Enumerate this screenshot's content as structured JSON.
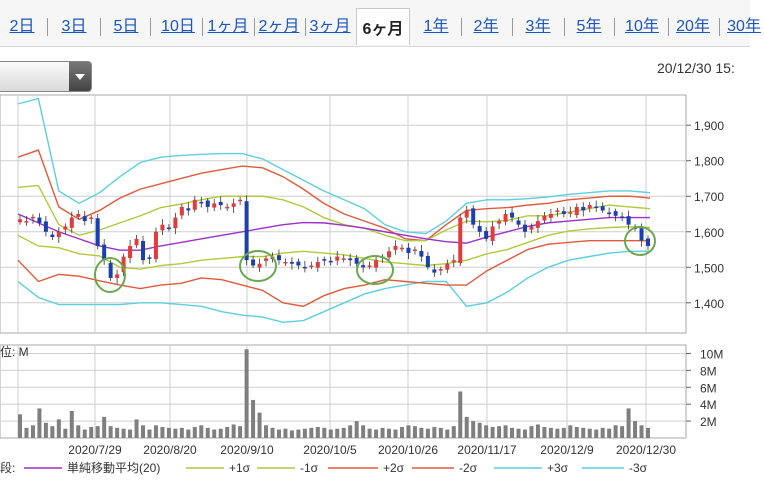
{
  "tabs": [
    {
      "label": "2日",
      "active": false
    },
    {
      "label": "3日",
      "active": false
    },
    {
      "label": "5日",
      "active": false
    },
    {
      "label": "10日",
      "active": false
    },
    {
      "label": "1ヶ月",
      "active": false
    },
    {
      "label": "2ヶ月",
      "active": false
    },
    {
      "label": "3ヶ月",
      "active": false
    },
    {
      "label": "6ヶ月",
      "active": true
    },
    {
      "label": "1年",
      "active": false
    },
    {
      "label": "2年",
      "active": false
    },
    {
      "label": "3年",
      "active": false
    },
    {
      "label": "5年",
      "active": false
    },
    {
      "label": "10年",
      "active": false
    },
    {
      "label": "20年",
      "active": false
    },
    {
      "label": "30年",
      "active": false
    }
  ],
  "header": {
    "datetime": "20/12/30 15:"
  },
  "volume_unit_label": "位: M",
  "legend_prefix": "段:",
  "colors": {
    "tab_link": "#1a55c0",
    "up_candle": "#e03c3c",
    "down_candle": "#1c3fb0",
    "sma": "#9a32c8",
    "sigma1": "#b4c83c",
    "sigma2": "#e05a3c",
    "sigma3": "#5ccfe0",
    "volume": "#7f7f7f",
    "annotation": "#6aa84f"
  },
  "chart_data": [
    {
      "type": "candlestick",
      "title": "",
      "x_labels": [
        "2020/7/29",
        "2020/8/20",
        "2020/9/10",
        "2020/10/5",
        "2020/10/26",
        "2020/11/17",
        "2020/12/9",
        "2020/12/30"
      ],
      "y_ticks": [
        1400,
        1500,
        1600,
        1700,
        1800,
        1900
      ],
      "ylim": [
        1315,
        1985
      ],
      "grid": true,
      "legend_position": "bottom",
      "annotations": [
        "green circles around lower-band touches near 2020/7/29, 2020/9/10, 2020/10/5 and 2020/12/30"
      ],
      "close": [
        1635,
        1630,
        1642,
        1625,
        1600,
        1585,
        1600,
        1615,
        1640,
        1650,
        1630,
        1640,
        1560,
        1520,
        1470,
        1480,
        1530,
        1560,
        1580,
        1520,
        1525,
        1600,
        1620,
        1610,
        1640,
        1670,
        1660,
        1690,
        1680,
        1670,
        1680,
        1675,
        1670,
        1680,
        1690,
        1520,
        1505,
        1510,
        1525,
        1530,
        1520,
        1515,
        1510,
        1505,
        1500,
        1505,
        1515,
        1520,
        1515,
        1530,
        1525,
        1520,
        1510,
        1500,
        1505,
        1520,
        1530,
        1545,
        1560,
        1555,
        1540,
        1550,
        1530,
        1500,
        1485,
        1495,
        1510,
        1520,
        1640,
        1660,
        1620,
        1600,
        1580,
        1615,
        1630,
        1650,
        1640,
        1620,
        1600,
        1615,
        1630,
        1645,
        1650,
        1660,
        1650,
        1655,
        1670,
        1660,
        1675,
        1670,
        1660,
        1650,
        1645,
        1640,
        1620,
        1610,
        1575,
        1560
      ],
      "sma20": [
        1650,
        1625,
        1600,
        1580,
        1560,
        1548,
        1548,
        1560,
        1570,
        1580,
        1590,
        1600,
        1610,
        1620,
        1626,
        1625,
        1618,
        1610,
        1600,
        1590,
        1580,
        1572,
        1568,
        1585,
        1600,
        1615,
        1625,
        1630,
        1635,
        1640,
        1640,
        1640
      ],
      "sigma1_upper": [
        1725,
        1730,
        1620,
        1590,
        1605,
        1625,
        1645,
        1668,
        1678,
        1690,
        1700,
        1700,
        1700,
        1690,
        1670,
        1640,
        1620,
        1610,
        1590,
        1575,
        1575,
        1605,
        1630,
        1628,
        1632,
        1645,
        1645,
        1655,
        1665,
        1675,
        1670,
        1665
      ],
      "sigma1_lower": [
        1590,
        1560,
        1555,
        1538,
        1532,
        1500,
        1495,
        1505,
        1510,
        1520,
        1525,
        1530,
        1530,
        1540,
        1545,
        1540,
        1535,
        1525,
        1515,
        1510,
        1505,
        1510,
        1520,
        1538,
        1550,
        1570,
        1590,
        1602,
        1608,
        1612,
        1614,
        1612
      ],
      "sigma2_upper": [
        1810,
        1830,
        1670,
        1635,
        1660,
        1695,
        1720,
        1735,
        1750,
        1765,
        1775,
        1785,
        1780,
        1755,
        1720,
        1680,
        1650,
        1630,
        1610,
        1580,
        1575,
        1620,
        1660,
        1665,
        1668,
        1675,
        1680,
        1690,
        1695,
        1700,
        1700,
        1695
      ],
      "sigma2_lower": [
        1520,
        1460,
        1480,
        1475,
        1462,
        1450,
        1440,
        1450,
        1455,
        1470,
        1465,
        1450,
        1435,
        1400,
        1390,
        1420,
        1440,
        1450,
        1465,
        1460,
        1455,
        1450,
        1450,
        1490,
        1520,
        1550,
        1565,
        1570,
        1575,
        1575,
        1575,
        1575
      ],
      "sigma3_upper": [
        1960,
        1975,
        1715,
        1680,
        1710,
        1755,
        1795,
        1810,
        1815,
        1818,
        1820,
        1820,
        1805,
        1775,
        1745,
        1715,
        1690,
        1665,
        1620,
        1600,
        1595,
        1630,
        1680,
        1690,
        1690,
        1693,
        1698,
        1705,
        1710,
        1715,
        1715,
        1710
      ],
      "sigma3_lower": [
        1460,
        1415,
        1395,
        1395,
        1395,
        1395,
        1400,
        1400,
        1395,
        1390,
        1375,
        1365,
        1360,
        1345,
        1350,
        1375,
        1400,
        1425,
        1440,
        1450,
        1460,
        1460,
        1390,
        1400,
        1430,
        1470,
        1500,
        1520,
        1530,
        1540,
        1545,
        1545
      ]
    },
    {
      "type": "bar",
      "title": "",
      "y_ticks": [
        "2M",
        "4M",
        "6M",
        "8M",
        "10M"
      ],
      "ylim": [
        0,
        11
      ],
      "values": [
        2.8,
        1.2,
        1.5,
        3.5,
        1.8,
        1.4,
        2.2,
        1.1,
        3.2,
        1.5,
        1.0,
        1.3,
        1.4,
        2.5,
        1.4,
        1.2,
        1.1,
        1.0,
        2.2,
        1.5,
        1.0,
        1.5,
        1.3,
        1.2,
        1.1,
        1.2,
        1.0,
        1.3,
        1.5,
        1.2,
        1.0,
        1.1,
        1.3,
        1.6,
        1.4,
        10.5,
        4.5,
        3.0,
        1.5,
        1.2,
        1.0,
        1.1,
        0.9,
        1.0,
        1.1,
        1.2,
        1.3,
        1.2,
        1.0,
        1.1,
        1.2,
        1.5,
        2.0,
        1.5,
        1.1,
        1.0,
        1.2,
        1.1,
        1.0,
        1.3,
        1.5,
        1.4,
        1.2,
        1.1,
        1.3,
        1.2,
        1.0,
        1.4,
        5.5,
        2.5,
        2.0,
        1.8,
        1.5,
        1.3,
        1.4,
        1.5,
        1.2,
        1.1,
        1.0,
        1.4,
        1.6,
        1.3,
        1.2,
        1.1,
        1.2,
        1.5,
        1.3,
        1.2,
        1.1,
        1.0,
        1.2,
        1.1,
        1.5,
        1.4,
        3.5,
        2.0,
        1.5,
        1.2
      ]
    }
  ],
  "legend": [
    {
      "label": "単純移動平均(20)",
      "color": "#9a32c8"
    },
    {
      "label": "+1σ",
      "color": "#b4c83c"
    },
    {
      "label": "-1σ",
      "color": "#b4c83c"
    },
    {
      "label": "+2σ",
      "color": "#e05a3c"
    },
    {
      "label": "-2σ",
      "color": "#e05a3c"
    },
    {
      "label": "+3σ",
      "color": "#5ccfe0"
    },
    {
      "label": "-3σ",
      "color": "#5ccfe0"
    }
  ]
}
